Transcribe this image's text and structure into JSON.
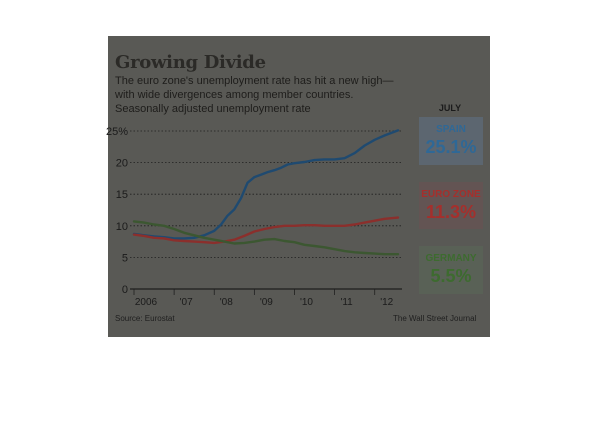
{
  "chart_data": {
    "type": "line",
    "title": "Growing Divide",
    "subtitle_lines": [
      "The euro zone's unemployment rate has hit a new high—",
      "with wide divergences among member countries.",
      "Seasonally adjusted unemployment rate"
    ],
    "period_label": "JULY",
    "x_tick_labels": [
      "2006",
      "'07",
      "'08",
      "'09",
      "'10",
      "'11",
      "'12"
    ],
    "x_range": [
      2006.0,
      2012.58
    ],
    "y_ticks": [
      0,
      5,
      10,
      15,
      20,
      25
    ],
    "y_tick_labels": [
      "0",
      "5",
      "10",
      "15",
      "20",
      "25%"
    ],
    "ylim": [
      0,
      25
    ],
    "grid": "horizontal dotted",
    "series": [
      {
        "name": "SPAIN",
        "label_value": "25.1%",
        "color": "#1f4a70",
        "callout_text_color": "#2f6896",
        "x": [
          2006.0,
          2006.25,
          2006.5,
          2006.75,
          2007.0,
          2007.25,
          2007.5,
          2007.75,
          2008.0,
          2008.17,
          2008.33,
          2008.5,
          2008.67,
          2008.83,
          2009.0,
          2009.17,
          2009.33,
          2009.5,
          2009.67,
          2009.83,
          2010.0,
          2010.25,
          2010.5,
          2010.75,
          2011.0,
          2011.25,
          2011.5,
          2011.75,
          2012.0,
          2012.25,
          2012.58
        ],
        "y": [
          8.7,
          8.5,
          8.3,
          8.2,
          8.0,
          8.0,
          8.1,
          8.5,
          9.2,
          10.2,
          11.6,
          12.6,
          14.4,
          16.8,
          17.7,
          18.1,
          18.5,
          18.8,
          19.2,
          19.7,
          19.9,
          20.1,
          20.4,
          20.5,
          20.5,
          20.7,
          21.5,
          22.7,
          23.6,
          24.3,
          25.1
        ]
      },
      {
        "name": "EURO ZONE",
        "label_value": "11.3%",
        "color": "#8b2f2c",
        "callout_text_color": "#a52f2c",
        "x": [
          2006.0,
          2006.25,
          2006.5,
          2006.75,
          2007.0,
          2007.25,
          2007.5,
          2007.75,
          2008.0,
          2008.25,
          2008.5,
          2008.75,
          2009.0,
          2009.25,
          2009.5,
          2009.75,
          2010.0,
          2010.25,
          2010.5,
          2010.75,
          2011.0,
          2011.25,
          2011.5,
          2011.75,
          2012.0,
          2012.25,
          2012.58
        ],
        "y": [
          8.6,
          8.4,
          8.1,
          8.0,
          7.7,
          7.6,
          7.5,
          7.4,
          7.3,
          7.5,
          7.8,
          8.4,
          9.1,
          9.5,
          9.8,
          10.0,
          10.0,
          10.1,
          10.1,
          10.0,
          10.0,
          10.0,
          10.2,
          10.5,
          10.8,
          11.1,
          11.3
        ]
      },
      {
        "name": "GERMANY",
        "label_value": "5.5%",
        "color": "#3c5731",
        "callout_text_color": "#3d6b2f",
        "x": [
          2006.0,
          2006.25,
          2006.5,
          2006.75,
          2007.0,
          2007.25,
          2007.5,
          2007.75,
          2008.0,
          2008.25,
          2008.5,
          2008.75,
          2009.0,
          2009.25,
          2009.5,
          2009.75,
          2010.0,
          2010.25,
          2010.5,
          2010.75,
          2011.0,
          2011.25,
          2011.5,
          2011.75,
          2012.0,
          2012.25,
          2012.58
        ],
        "y": [
          10.7,
          10.5,
          10.2,
          10.0,
          9.5,
          8.9,
          8.5,
          8.1,
          7.8,
          7.5,
          7.2,
          7.3,
          7.5,
          7.8,
          7.9,
          7.6,
          7.4,
          7.0,
          6.8,
          6.6,
          6.3,
          6.0,
          5.8,
          5.7,
          5.6,
          5.5,
          5.5
        ]
      }
    ],
    "source": "Source: Eurostat",
    "credit": "The Wall Street Journal"
  },
  "colors": {
    "panel_background": "#595955",
    "gridline": "#1f1f1f",
    "tick_text": "#1b1b1b"
  }
}
